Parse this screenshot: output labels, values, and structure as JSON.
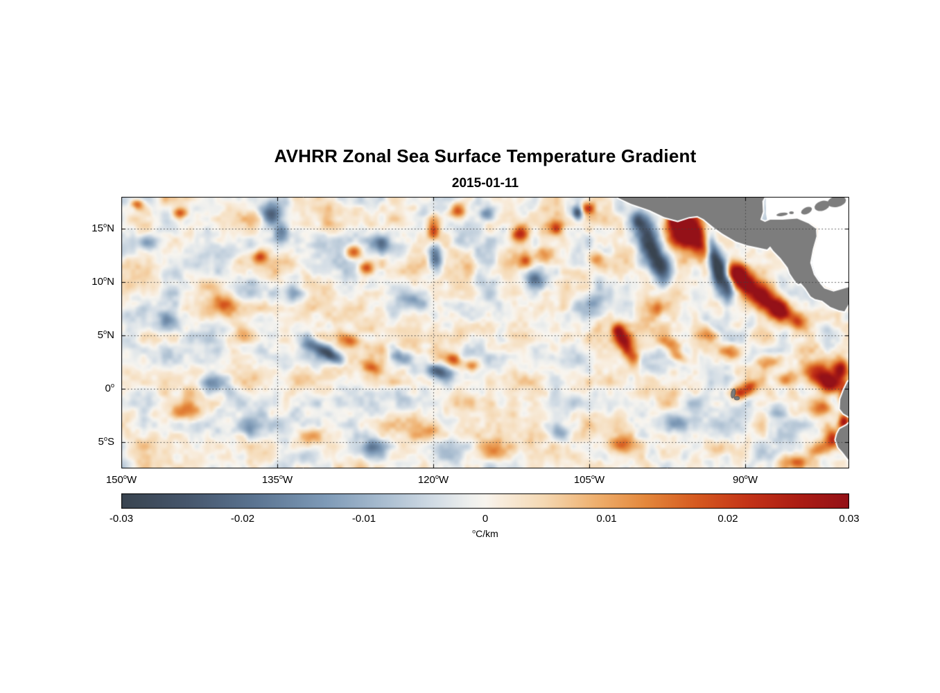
{
  "chart_data": {
    "type": "heatmap",
    "title": "AVHRR Zonal Sea Surface Temperature Gradient",
    "subtitle": "2015-01-11",
    "projection": "longitude-latitude degrees",
    "lon_range": [
      -150,
      -80
    ],
    "lat_range": [
      -7.5,
      18
    ],
    "grid": "dotted",
    "grid_color": "#3f3f3f",
    "xticks": [
      {
        "lon": -150,
        "num": "150",
        "sup": "o",
        "suf": "W"
      },
      {
        "lon": -135,
        "num": "135",
        "sup": "o",
        "suf": "W"
      },
      {
        "lon": -120,
        "num": "120",
        "sup": "o",
        "suf": "W"
      },
      {
        "lon": -105,
        "num": "105",
        "sup": "o",
        "suf": "W"
      },
      {
        "lon": -90,
        "num": "90",
        "sup": "o",
        "suf": "W"
      }
    ],
    "yticks": [
      {
        "lat": 15,
        "num": "15",
        "sup": "o",
        "suf": "N"
      },
      {
        "lat": 10,
        "num": "10",
        "sup": "o",
        "suf": "N"
      },
      {
        "lat": 5,
        "num": "5",
        "sup": "o",
        "suf": "N"
      },
      {
        "lat": 0,
        "num": "0",
        "sup": "o",
        "suf": ""
      },
      {
        "lat": -5,
        "num": "5",
        "sup": "o",
        "suf": "S"
      }
    ],
    "colorbar": {
      "min": -0.03,
      "max": 0.03,
      "ticks": [
        {
          "value": -0.03,
          "label": "-0.03"
        },
        {
          "value": -0.02,
          "label": "-0.02"
        },
        {
          "value": -0.01,
          "label": "-0.01"
        },
        {
          "value": 0,
          "label": "0"
        },
        {
          "value": 0.01,
          "label": "0.01"
        },
        {
          "value": 0.02,
          "label": "0.02"
        },
        {
          "value": 0.03,
          "label": "0.03"
        }
      ],
      "units": {
        "sup": "o",
        "suf": "C/km"
      }
    },
    "colormap": [
      [
        0.0,
        "#394450"
      ],
      [
        0.09,
        "#46566c"
      ],
      [
        0.18,
        "#5a7390"
      ],
      [
        0.28,
        "#7e9ab7"
      ],
      [
        0.36,
        "#a9bdd0"
      ],
      [
        0.43,
        "#d2dce5"
      ],
      [
        0.48,
        "#eff0ee"
      ],
      [
        0.5,
        "#f8f5ef"
      ],
      [
        0.52,
        "#f8edde"
      ],
      [
        0.58,
        "#f5d9b4"
      ],
      [
        0.65,
        "#efb170"
      ],
      [
        0.72,
        "#e4883c"
      ],
      [
        0.79,
        "#d65a20"
      ],
      [
        0.86,
        "#c43418"
      ],
      [
        0.93,
        "#ac1d14"
      ],
      [
        1.0,
        "#941118"
      ]
    ],
    "texture": {
      "seed": 7,
      "amplitude": 0.0115
    },
    "features": [
      [
        -99.4,
        13.9,
        0.75,
        1.5,
        18,
        -0.033
      ],
      [
        -98.1,
        11.4,
        0.7,
        1.1,
        5,
        -0.027
      ],
      [
        -100.4,
        15.9,
        0.5,
        0.6,
        0,
        -0.015
      ],
      [
        -95.7,
        14.9,
        1.15,
        1.15,
        0,
        0.042
      ],
      [
        -96.6,
        15.9,
        0.6,
        0.45,
        -20,
        0.028
      ],
      [
        -94.5,
        13.4,
        0.6,
        0.9,
        10,
        0.016
      ],
      [
        -93.1,
        12.6,
        0.45,
        1.3,
        8,
        -0.03
      ],
      [
        -92.4,
        10.7,
        0.5,
        1.1,
        -5,
        -0.031
      ],
      [
        -90.9,
        10.9,
        0.75,
        0.75,
        0,
        0.038
      ],
      [
        -91.7,
        9.6,
        0.4,
        0.9,
        0,
        -0.024
      ],
      [
        -88.5,
        8.8,
        1.5,
        0.8,
        -33,
        0.034
      ],
      [
        -86.9,
        7.4,
        0.9,
        0.6,
        -30,
        0.027
      ],
      [
        -89.9,
        9.9,
        0.5,
        0.5,
        0,
        0.02
      ],
      [
        -85.0,
        6.3,
        0.5,
        0.5,
        0,
        0.016
      ],
      [
        -83.3,
        1.6,
        0.9,
        0.7,
        -10,
        0.026
      ],
      [
        -81.9,
        0.6,
        0.7,
        0.6,
        0,
        0.03
      ],
      [
        -80.9,
        1.9,
        0.5,
        0.7,
        0,
        0.026
      ],
      [
        -80.4,
        -0.6,
        0.45,
        0.8,
        0,
        0.026
      ],
      [
        -80.6,
        -3.1,
        0.4,
        0.5,
        0,
        0.031
      ],
      [
        -90.6,
        -0.35,
        0.55,
        0.45,
        0,
        0.022
      ],
      [
        -89.6,
        0.3,
        0.5,
        0.4,
        -20,
        0.016
      ],
      [
        -82.5,
        -1.8,
        0.6,
        0.5,
        20,
        0.018
      ],
      [
        -81.8,
        -4.6,
        0.6,
        0.7,
        20,
        0.024
      ],
      [
        -83.0,
        -5.6,
        0.8,
        0.5,
        10,
        0.014
      ],
      [
        -85.0,
        -6.8,
        0.9,
        0.5,
        0,
        0.016
      ],
      [
        -101.7,
        4.3,
        0.55,
        1.1,
        25,
        0.024
      ],
      [
        -102.3,
        5.6,
        0.45,
        0.5,
        0,
        0.018
      ],
      [
        -100.8,
        2.9,
        0.5,
        0.5,
        0,
        0.014
      ],
      [
        -97.4,
        4.4,
        0.8,
        0.5,
        -20,
        0.015
      ],
      [
        -96.6,
        3.1,
        0.6,
        0.4,
        -25,
        0.014
      ],
      [
        -104.8,
        7.9,
        0.9,
        0.7,
        0,
        -0.014
      ],
      [
        -106.2,
        16.6,
        0.35,
        0.45,
        0,
        -0.027
      ],
      [
        -105.2,
        17.0,
        0.5,
        0.4,
        0,
        0.022
      ],
      [
        -108.3,
        15.2,
        0.5,
        0.5,
        0,
        0.016
      ],
      [
        -111.8,
        14.6,
        0.6,
        0.55,
        0,
        0.022
      ],
      [
        -111.2,
        12.1,
        0.5,
        0.5,
        0,
        0.02
      ],
      [
        -110.3,
        10.3,
        0.6,
        0.5,
        -15,
        -0.016
      ],
      [
        -119.9,
        12.7,
        0.45,
        1.0,
        5,
        -0.026
      ],
      [
        -120.1,
        14.9,
        0.4,
        0.9,
        0,
        0.02
      ],
      [
        -121.8,
        8.2,
        0.7,
        0.5,
        -20,
        -0.014
      ],
      [
        -119.6,
        1.7,
        0.9,
        0.45,
        -12,
        -0.027
      ],
      [
        -118.2,
        2.8,
        0.6,
        0.4,
        -15,
        0.018
      ],
      [
        -116.4,
        2.3,
        0.5,
        0.4,
        0,
        0.016
      ],
      [
        -123.0,
        3.0,
        0.8,
        0.5,
        -25,
        -0.016
      ],
      [
        -126.0,
        2.0,
        0.7,
        0.4,
        -15,
        0.013
      ],
      [
        -131.2,
        3.9,
        1.1,
        0.45,
        -28,
        -0.021
      ],
      [
        -129.6,
        3.1,
        0.9,
        0.4,
        -28,
        -0.016
      ],
      [
        -128.2,
        4.6,
        0.7,
        0.4,
        -20,
        0.014
      ],
      [
        -135.7,
        16.3,
        0.7,
        0.8,
        0,
        -0.027
      ],
      [
        -134.7,
        14.6,
        0.5,
        0.6,
        0,
        -0.018
      ],
      [
        -136.8,
        12.4,
        0.6,
        0.45,
        15,
        0.018
      ],
      [
        -144.5,
        16.6,
        0.5,
        0.4,
        0,
        0.02
      ],
      [
        -148.6,
        17.4,
        0.45,
        0.35,
        0,
        0.018
      ],
      [
        -147.5,
        13.8,
        0.6,
        0.5,
        0,
        -0.013
      ],
      [
        -141.0,
        0.6,
        1.0,
        0.6,
        0,
        -0.017
      ],
      [
        -127.8,
        12.9,
        0.55,
        0.5,
        0,
        0.021
      ],
      [
        -126.5,
        11.4,
        0.5,
        0.45,
        0,
        0.02
      ],
      [
        -125.1,
        13.7,
        0.5,
        0.5,
        0,
        -0.016
      ],
      [
        -133.5,
        9.0,
        0.8,
        0.6,
        -10,
        -0.013
      ],
      [
        -117.7,
        16.8,
        0.6,
        0.5,
        0,
        0.018
      ],
      [
        -114.9,
        16.5,
        0.5,
        0.4,
        0,
        -0.016
      ],
      [
        -109.5,
        12.6,
        0.6,
        0.6,
        0,
        0.014
      ],
      [
        -104.5,
        12.4,
        0.6,
        0.5,
        0,
        0.012
      ],
      [
        -98.5,
        7.6,
        0.7,
        0.5,
        0,
        0.012
      ],
      [
        -93.5,
        5.0,
        0.7,
        0.5,
        -15,
        0.014
      ],
      [
        -91.5,
        3.5,
        0.8,
        0.5,
        -10,
        0.016
      ],
      [
        -88.0,
        2.5,
        0.8,
        0.5,
        0,
        0.014
      ],
      [
        -86.0,
        1.0,
        0.7,
        0.5,
        10,
        0.018
      ],
      [
        -140.2,
        8.0,
        0.9,
        0.6,
        0,
        0.012
      ],
      [
        -145.5,
        6.5,
        0.8,
        0.6,
        10,
        -0.012
      ],
      [
        -137.5,
        5.0,
        0.9,
        0.5,
        -15,
        0.013
      ],
      [
        -144.0,
        -2.0,
        0.9,
        0.6,
        0,
        0.012
      ],
      [
        -138.0,
        -3.5,
        0.8,
        0.6,
        0,
        -0.012
      ],
      [
        -132.0,
        -4.5,
        0.9,
        0.6,
        0,
        0.012
      ],
      [
        -126.0,
        -5.5,
        0.9,
        0.6,
        0,
        -0.011
      ],
      [
        -120.0,
        -4.0,
        0.9,
        0.6,
        0,
        0.011
      ],
      [
        -114.0,
        -5.5,
        0.9,
        0.6,
        0,
        0.012
      ],
      [
        -108.0,
        -4.0,
        0.8,
        0.6,
        0,
        -0.011
      ],
      [
        -102.0,
        -5.0,
        0.8,
        0.6,
        0,
        0.012
      ],
      [
        -97.0,
        -3.0,
        0.9,
        0.6,
        0,
        -0.011
      ],
      [
        -93.0,
        -5.5,
        0.8,
        0.6,
        0,
        0.013
      ],
      [
        -87.0,
        -2.0,
        0.7,
        0.5,
        0,
        -0.012
      ]
    ],
    "no_data_color": "#ffffff",
    "no_data_region": [
      [
        -88.0,
        18.7
      ],
      [
        -88.0,
        16.4
      ],
      [
        -87.9,
        15.8
      ],
      [
        -86.4,
        15.95
      ],
      [
        -85.0,
        16.05
      ],
      [
        -83.8,
        15.6
      ],
      [
        -83.05,
        15.05
      ],
      [
        -83.0,
        14.3
      ],
      [
        -83.35,
        13.1
      ],
      [
        -83.6,
        11.8
      ],
      [
        -83.25,
        10.7
      ],
      [
        -82.6,
        9.9
      ],
      [
        -82.2,
        9.5
      ],
      [
        -81.4,
        9.2
      ],
      [
        -79.8,
        9.65
      ],
      [
        -78.7,
        9.45
      ],
      [
        -76.9,
        8.9
      ],
      [
        -73.5,
        9.1
      ],
      [
        -73.5,
        18.7
      ]
    ],
    "land": {
      "color": "#7d7d7d",
      "coast_rim_color": "#ffffff",
      "main": [
        [
          -102.6,
          18.4
        ],
        [
          -102.2,
          17.9
        ],
        [
          -101.0,
          17.35
        ],
        [
          -99.2,
          16.75
        ],
        [
          -97.8,
          16.1
        ],
        [
          -96.5,
          15.75
        ],
        [
          -95.4,
          16.1
        ],
        [
          -94.6,
          16.2
        ],
        [
          -94.0,
          15.9
        ],
        [
          -93.0,
          15.1
        ],
        [
          -92.2,
          14.55
        ],
        [
          -90.9,
          13.8
        ],
        [
          -89.8,
          13.45
        ],
        [
          -88.6,
          13.2
        ],
        [
          -87.9,
          13.05
        ],
        [
          -87.6,
          13.35
        ],
        [
          -87.3,
          12.95
        ],
        [
          -86.6,
          12.25
        ],
        [
          -85.9,
          11.35
        ],
        [
          -85.7,
          10.8
        ],
        [
          -85.25,
          10.15
        ],
        [
          -84.9,
          9.8
        ],
        [
          -84.65,
          9.9
        ],
        [
          -84.2,
          9.4
        ],
        [
          -83.7,
          8.65
        ],
        [
          -83.3,
          8.4
        ],
        [
          -82.6,
          8.25
        ],
        [
          -81.8,
          7.65
        ],
        [
          -81.0,
          7.35
        ],
        [
          -80.45,
          7.25
        ],
        [
          -80.1,
          7.85
        ],
        [
          -79.65,
          8.85
        ],
        [
          -79.0,
          8.45
        ],
        [
          -78.3,
          8.0
        ],
        [
          -77.9,
          7.4
        ],
        [
          -77.4,
          6.2
        ],
        [
          -77.2,
          4.8
        ],
        [
          -77.45,
          3.6
        ],
        [
          -78.1,
          2.5
        ],
        [
          -78.9,
          1.55
        ],
        [
          -79.7,
          1.0
        ],
        [
          -80.15,
          0.6
        ],
        [
          -80.5,
          -0.1
        ],
        [
          -80.85,
          -1.0
        ],
        [
          -80.9,
          -1.9
        ],
        [
          -80.55,
          -2.35
        ],
        [
          -80.0,
          -2.65
        ],
        [
          -79.75,
          -3.0
        ],
        [
          -80.25,
          -3.45
        ],
        [
          -80.9,
          -3.8
        ],
        [
          -81.15,
          -4.25
        ],
        [
          -81.3,
          -4.8
        ],
        [
          -81.05,
          -5.5
        ],
        [
          -80.6,
          -6.0
        ],
        [
          -79.9,
          -6.9
        ],
        [
          -79.45,
          -7.8
        ],
        [
          -74.0,
          -8.2
        ],
        [
          -74.0,
          9.05
        ],
        [
          -77.0,
          8.8
        ],
        [
          -78.8,
          9.35
        ],
        [
          -79.9,
          9.55
        ],
        [
          -81.5,
          9.1
        ],
        [
          -82.4,
          9.4
        ],
        [
          -82.8,
          9.85
        ],
        [
          -83.4,
          10.7
        ],
        [
          -83.75,
          11.8
        ],
        [
          -83.5,
          13.1
        ],
        [
          -83.15,
          14.3
        ],
        [
          -83.2,
          15.0
        ],
        [
          -83.9,
          15.5
        ],
        [
          -85.0,
          15.95
        ],
        [
          -86.4,
          15.85
        ],
        [
          -87.6,
          15.85
        ],
        [
          -88.1,
          15.65
        ],
        [
          -88.55,
          15.85
        ],
        [
          -88.3,
          16.6
        ],
        [
          -88.35,
          17.6
        ],
        [
          -87.75,
          18.6
        ]
      ],
      "islands": [
        {
          "lon": -86.45,
          "lat": 16.35,
          "rx": 0.55,
          "ry": 0.15,
          "rot": -8
        },
        {
          "lon": -85.55,
          "lat": 16.5,
          "rx": 0.22,
          "ry": 0.13,
          "rot": 0
        },
        {
          "lon": -84.1,
          "lat": 16.7,
          "rx": 0.55,
          "ry": 0.3,
          "rot": -25
        },
        {
          "lon": -82.6,
          "lat": 17.15,
          "rx": 0.75,
          "ry": 0.45,
          "rot": -18
        },
        {
          "lon": -81.2,
          "lat": 17.55,
          "rx": 0.9,
          "ry": 0.5,
          "rot": -12
        },
        {
          "lon": -91.15,
          "lat": -0.45,
          "rx": 0.16,
          "ry": 0.42,
          "rot": 10,
          "outline": "#3a4450"
        },
        {
          "lon": -90.8,
          "lat": -0.9,
          "rx": 0.22,
          "ry": 0.14,
          "rot": 0,
          "outline": "#3a4450"
        }
      ]
    }
  }
}
